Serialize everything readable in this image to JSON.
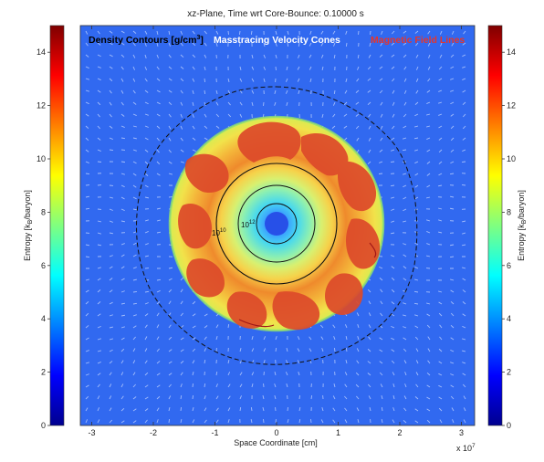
{
  "chart_data": {
    "type": "heatmap",
    "title": "xz-Plane, Time wrt Core-Bounce: 0.10000 s",
    "xlabel": "Space Coordinate [cm]",
    "x_multiplier": "x 10",
    "x_multiplier_exp": "7",
    "xlim": [
      -3.2,
      3.2
    ],
    "ylim": [
      -3.2,
      3.2
    ],
    "x_ticks": [
      "-3",
      "-2",
      "-1",
      "0",
      "1",
      "2",
      "3"
    ],
    "x_tick_values": [
      -3,
      -2,
      -1,
      0,
      1,
      2,
      3
    ],
    "colorbar": {
      "label_prefix": "Entropy [k",
      "label_sub": "B",
      "label_suffix": "/baryon]",
      "range": [
        0,
        15
      ],
      "ticks": [
        "0",
        "2",
        "4",
        "6",
        "8",
        "10",
        "12",
        "14"
      ],
      "tick_values": [
        0,
        2,
        4,
        6,
        8,
        10,
        12,
        14
      ],
      "colormap": "jet"
    },
    "legend": {
      "density_prefix": "Density Contours [g/cm",
      "density_exp": "3",
      "density_suffix": "]",
      "velocity": "Masstracing Velocity Cones",
      "magnetic": "Magnetic Field Lines",
      "colors": {
        "density": "#000000",
        "velocity": "#ffffff",
        "magnetic": "#e8352a"
      }
    },
    "contour_labels": [
      {
        "base": "10",
        "exp": "10"
      },
      {
        "base": "10",
        "exp": "12"
      }
    ],
    "entropy_regions": [
      {
        "region": "outer background",
        "entropy": 2.5
      },
      {
        "region": "shock shell",
        "entropy": 8.5
      },
      {
        "region": "convective plumes",
        "entropy": 11.5
      },
      {
        "region": "central core",
        "entropy": 2
      }
    ],
    "shock_radius": 1.7,
    "density_contour_radii": [
      2.2,
      0.95,
      0.6
    ]
  }
}
